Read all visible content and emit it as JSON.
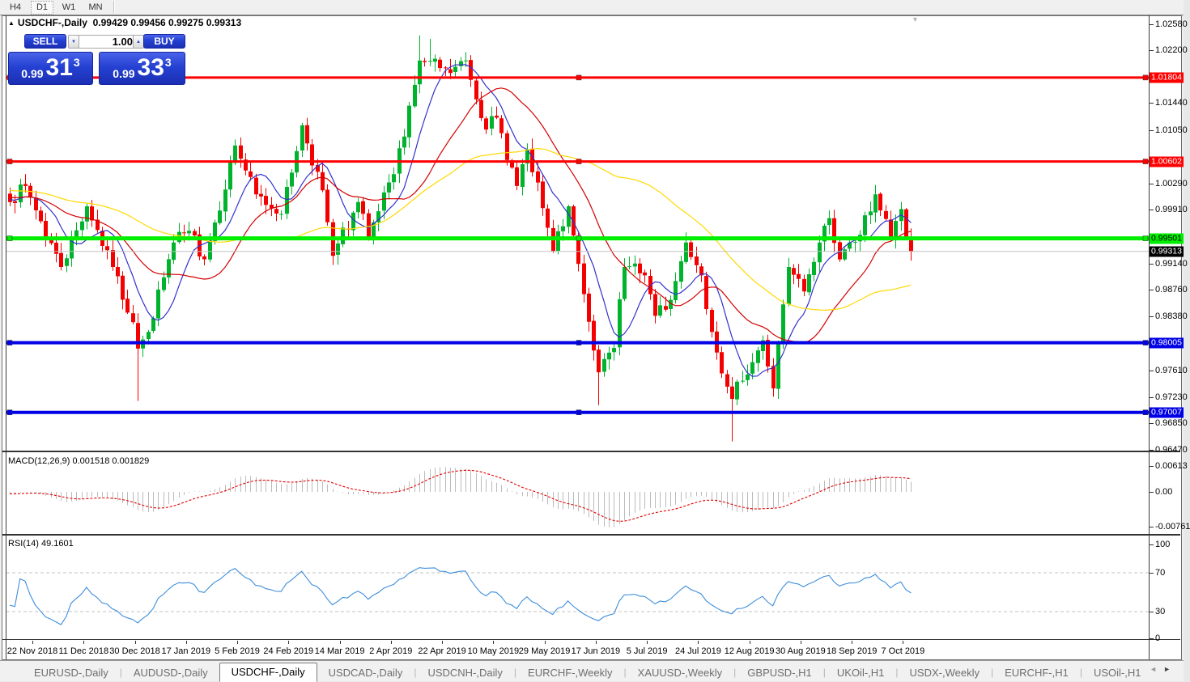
{
  "toolbar": {
    "timeframes": [
      {
        "label": "H4",
        "active": false
      },
      {
        "label": "D1",
        "active": true
      },
      {
        "label": "W1",
        "active": false
      },
      {
        "label": "MN",
        "active": false
      }
    ]
  },
  "chart_header": {
    "collapse_arrow": "▲",
    "symbol": "USDCHF-,Daily",
    "ohlc_readout": "0.99429 0.99456 0.99275 0.99313",
    "scroll_marker": "▼"
  },
  "trade_panel": {
    "sell_label": "SELL",
    "buy_label": "BUY",
    "volume": "1.00",
    "spin_down": "▼",
    "spin_up": "▲",
    "sell_price": {
      "prefix": "0.99",
      "big": "31",
      "sup": "3"
    },
    "buy_price": {
      "prefix": "0.99",
      "big": "33",
      "sup": "3"
    }
  },
  "price_axis": {
    "ticks": [
      [
        "1.02580",
        30
      ],
      [
        "1.02200",
        62
      ],
      [
        "1.01440",
        127
      ],
      [
        "1.01050",
        161
      ],
      [
        "1.00290",
        227
      ],
      [
        "0.99910",
        259
      ],
      [
        "0.99140",
        326
      ],
      [
        "0.98760",
        358
      ],
      [
        "0.98380",
        391
      ],
      [
        "0.97610",
        458
      ],
      [
        "0.97230",
        491
      ],
      [
        "0.96850",
        523
      ],
      [
        "0.96470",
        556
      ]
    ],
    "line_labels": [
      {
        "text": "1.01804",
        "y": 96,
        "bg": "#ff0000",
        "fg": "#ffffff"
      },
      {
        "text": "1.00602",
        "y": 200,
        "bg": "#ff0000",
        "fg": "#ffffff"
      },
      {
        "text": "0.99501",
        "y": 295,
        "bg": "#00ee00",
        "fg": "#000000"
      },
      {
        "text": "0.99313",
        "y": 311,
        "bg": "#000000",
        "fg": "#ffffff"
      },
      {
        "text": "0.98005",
        "y": 424,
        "bg": "#0000e6",
        "fg": "#ffffff"
      },
      {
        "text": "0.97007",
        "y": 510,
        "bg": "#0000e6",
        "fg": "#ffffff"
      }
    ]
  },
  "macd_panel": {
    "label": "MACD(12,26,9) 0.001518 0.001829",
    "ticks": [
      [
        "0.00613",
        576
      ],
      [
        "0.00",
        608
      ],
      [
        "-0.00761",
        651
      ]
    ]
  },
  "rsi_panel": {
    "label": "RSI(14) 49.1601",
    "ticks": [
      [
        "100",
        673
      ],
      [
        "70",
        708
      ],
      [
        "30",
        756
      ],
      [
        "0",
        789
      ]
    ]
  },
  "time_axis": {
    "labels": [
      "22 Nov 2018",
      "11 Dec 2018",
      "30 Dec 2018",
      "17 Jan 2019",
      "5 Feb 2019",
      "24 Feb 2019",
      "14 Mar 2019",
      "2 Apr 2019",
      "22 Apr 2019",
      "10 May 2019",
      "29 May 2019",
      "17 Jun 2019",
      "5 Jul 2019",
      "24 Jul 2019",
      "12 Aug 2019",
      "30 Aug 2019",
      "18 Sep 2019",
      "7 Oct 2019"
    ],
    "first_x": 40,
    "step": 63.26
  },
  "tabs": {
    "scroll_left": "◄",
    "scroll_right": "►",
    "items": [
      {
        "label": "EURUSD-,Daily",
        "active": false
      },
      {
        "label": "AUDUSD-,Daily",
        "active": false
      },
      {
        "label": "USDCHF-,Daily",
        "active": true
      },
      {
        "label": "USDCAD-,Daily",
        "active": false
      },
      {
        "label": "USDCNH-,Daily",
        "active": false
      },
      {
        "label": "EURCHF-,Weekly",
        "active": false
      },
      {
        "label": "XAUUSD-,Weekly",
        "active": false
      },
      {
        "label": "GBPUSD-,H1",
        "active": false
      },
      {
        "label": "UKOil-,H1",
        "active": false
      },
      {
        "label": "USDX-,Weekly",
        "active": false
      },
      {
        "label": "EURCHF-,H1",
        "active": false
      },
      {
        "label": "USOil-,H1",
        "active": false
      }
    ]
  },
  "chart_data": {
    "type": "candlestick",
    "symbol": "USDCHF",
    "timeframe": "Daily",
    "bars": 177,
    "ylim": [
      0.9647,
      1.0258
    ],
    "grid": false,
    "close_anchors": [
      [
        0,
        1.0002
      ],
      [
        3,
        1.0025
      ],
      [
        10,
        0.9909
      ],
      [
        15,
        0.9996
      ],
      [
        20,
        0.9909
      ],
      [
        24,
        0.983
      ],
      [
        25,
        0.9792
      ],
      [
        27,
        0.9816
      ],
      [
        32,
        0.9944
      ],
      [
        35,
        0.9961
      ],
      [
        38,
        0.992
      ],
      [
        44,
        1.0083
      ],
      [
        48,
        1.0013
      ],
      [
        53,
        0.9985
      ],
      [
        57,
        1.0112
      ],
      [
        61,
        1.0019
      ],
      [
        63,
        0.9925
      ],
      [
        68,
        1.0002
      ],
      [
        70,
        0.995
      ],
      [
        75,
        1.0042
      ],
      [
        80,
        1.0205
      ],
      [
        86,
        1.0187
      ],
      [
        89,
        1.0205
      ],
      [
        93,
        1.0106
      ],
      [
        95,
        1.0123
      ],
      [
        99,
        1.0025
      ],
      [
        101,
        1.0077
      ],
      [
        106,
        0.9932
      ],
      [
        109,
        0.9996
      ],
      [
        112,
        0.987
      ],
      [
        115,
        0.9758
      ],
      [
        118,
        0.9793
      ],
      [
        120,
        0.9909
      ],
      [
        124,
        0.9897
      ],
      [
        126,
        0.9839
      ],
      [
        129,
        0.9862
      ],
      [
        132,
        0.9944
      ],
      [
        135,
        0.9897
      ],
      [
        137,
        0.9816
      ],
      [
        141,
        0.972
      ],
      [
        143,
        0.9746
      ],
      [
        147,
        0.9804
      ],
      [
        149,
        0.9735
      ],
      [
        152,
        0.9909
      ],
      [
        155,
        0.9874
      ],
      [
        158,
        0.9944
      ],
      [
        160,
        0.9979
      ],
      [
        162,
        0.992
      ],
      [
        166,
        0.9955
      ],
      [
        169,
        1.0013
      ],
      [
        170,
        0.999
      ],
      [
        172,
        0.995
      ],
      [
        173,
        0.9975
      ],
      [
        174,
        0.9992
      ],
      [
        175,
        0.995
      ],
      [
        176,
        0.99313
      ]
    ],
    "wick_events": [
      [
        25,
        "low",
        0.9717
      ],
      [
        80,
        "high",
        1.0241
      ],
      [
        82,
        "high",
        1.0236
      ],
      [
        115,
        "low",
        0.9711
      ],
      [
        141,
        "low",
        0.9659
      ],
      [
        149,
        "low",
        0.9723
      ],
      [
        174,
        "high",
        1.0002
      ]
    ],
    "hlines": [
      {
        "price": 1.01804,
        "color": "#ff0000",
        "width": 3
      },
      {
        "price": 1.00602,
        "color": "#ff0000",
        "width": 3
      },
      {
        "price": 0.99501,
        "color": "#00ee00",
        "width": 5
      },
      {
        "price": 0.98005,
        "color": "#0000e6",
        "width": 4
      },
      {
        "price": 0.97007,
        "color": "#0000e6",
        "width": 4
      }
    ],
    "current_price": 0.99313,
    "moving_averages": [
      {
        "period": 8,
        "color": "#3232cc"
      },
      {
        "period": 20,
        "color": "#d40000"
      },
      {
        "period": 50,
        "color": "#ffd900"
      }
    ],
    "indicators": [
      {
        "name": "MACD",
        "params": [
          12,
          26,
          9
        ],
        "values": [
          0.001518,
          0.001829
        ]
      },
      {
        "name": "RSI",
        "params": [
          14
        ],
        "value": 49.1601
      }
    ],
    "colors": {
      "up": "#00b32c",
      "down": "#f40000",
      "macd_bar": "#bbbbbb",
      "macd_signal": "#e00000",
      "rsi": "#3d8edb",
      "bid_line": "#c0c0c0"
    }
  }
}
